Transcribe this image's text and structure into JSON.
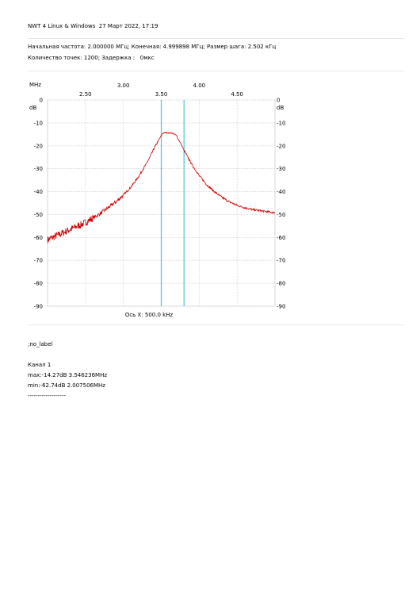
{
  "header": {
    "title": "NWT 4 Linux & Windows  27 Март 2022, 17:19",
    "params_line1": "Начальная частота: 2.000000 МГц; Конечная: 4.999898 МГц; Размер шага: 2.502 кГц",
    "params_line2": "Количество точек: 1200; Задержка :   0мкс"
  },
  "notes": {
    "label": ";no_label",
    "channel": "Канал 1",
    "max": "max:-14.27dB 3.546236MHz",
    "min": "min:-62.74dB 2.007506MHz",
    "dashes": "-------------------"
  },
  "colors": {
    "trace": "#cc0000",
    "markers": "#3fc8d8",
    "grid": "#c8c8c8",
    "axis": "#000000"
  },
  "chart_data": {
    "type": "line",
    "title": "",
    "x_unit_label": "MHz",
    "ylabel_left": "dB",
    "ylabel_right": "dB",
    "footer_label": "Ось X: 500.0 kHz",
    "xlim": [
      2.0,
      4.999898
    ],
    "ylim": [
      -90,
      0
    ],
    "x_ticks_upper": [
      "3.00",
      "4.00"
    ],
    "x_ticks_lower": [
      "2.50",
      "3.50",
      "4.50"
    ],
    "x_tick_values_upper": [
      3.0,
      4.0
    ],
    "x_tick_values_lower": [
      2.5,
      3.5,
      4.5
    ],
    "y_ticks": [
      "0",
      "-10",
      "-20",
      "-30",
      "-40",
      "-50",
      "-60",
      "-70",
      "-80",
      "-90"
    ],
    "y_tick_values": [
      0,
      -10,
      -20,
      -30,
      -40,
      -50,
      -60,
      -70,
      -80,
      -90
    ],
    "grid": true,
    "markers_x": [
      3.5,
      3.8
    ],
    "series": [
      {
        "values_x": [
          2.0,
          2.1,
          2.2,
          2.3,
          2.4,
          2.5,
          2.6,
          2.7,
          2.8,
          2.9,
          3.0,
          3.1,
          3.2,
          3.3,
          3.35,
          3.4,
          3.45,
          3.5,
          3.52,
          3.55,
          3.6,
          3.65,
          3.7,
          3.72,
          3.75,
          3.8,
          3.85,
          3.9,
          4.0,
          4.1,
          4.2,
          4.3,
          4.4,
          4.5,
          4.6,
          4.7,
          4.8,
          4.9,
          5.0
        ],
        "values_y": [
          -61,
          -59.5,
          -58,
          -56.5,
          -55,
          -53.5,
          -51.5,
          -49.5,
          -47,
          -44.5,
          -41.5,
          -38,
          -33.5,
          -28,
          -25,
          -21.5,
          -18.5,
          -15.5,
          -14.5,
          -14.3,
          -14.4,
          -14.5,
          -15.5,
          -17,
          -18.5,
          -22,
          -25,
          -28,
          -33,
          -37,
          -40,
          -42.5,
          -44.5,
          -46,
          -47,
          -47.8,
          -48.3,
          -48.8,
          -49.2
        ]
      }
    ]
  }
}
